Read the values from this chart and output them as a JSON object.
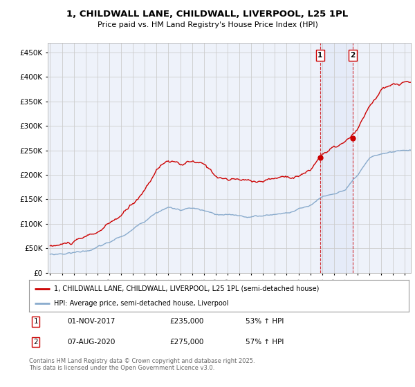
{
  "title": "1, CHILDWALL LANE, CHILDWALL, LIVERPOOL, L25 1PL",
  "subtitle": "Price paid vs. HM Land Registry's House Price Index (HPI)",
  "line1_color": "#cc0000",
  "line2_color": "#88aacc",
  "marker1_date": 2017.833,
  "marker1_price": 235000,
  "marker1_text": "01-NOV-2017",
  "marker1_pct": "53% ↑ HPI",
  "marker2_date": 2020.583,
  "marker2_price": 275000,
  "marker2_text": "07-AUG-2020",
  "marker2_pct": "57% ↑ HPI",
  "legend_line1": "1, CHILDWALL LANE, CHILDWALL, LIVERPOOL, L25 1PL (semi-detached house)",
  "legend_line2": "HPI: Average price, semi-detached house, Liverpool",
  "footer": "Contains HM Land Registry data © Crown copyright and database right 2025.\nThis data is licensed under the Open Government Licence v3.0.",
  "background_color": "#ffffff",
  "plot_bg_color": "#eef2fa",
  "grid_color": "#cccccc",
  "ylim": [
    0,
    470000
  ],
  "yticks": [
    0,
    50000,
    100000,
    150000,
    200000,
    250000,
    300000,
    350000,
    400000,
    450000
  ],
  "xlim_left": 1994.8,
  "xlim_right": 2025.5
}
